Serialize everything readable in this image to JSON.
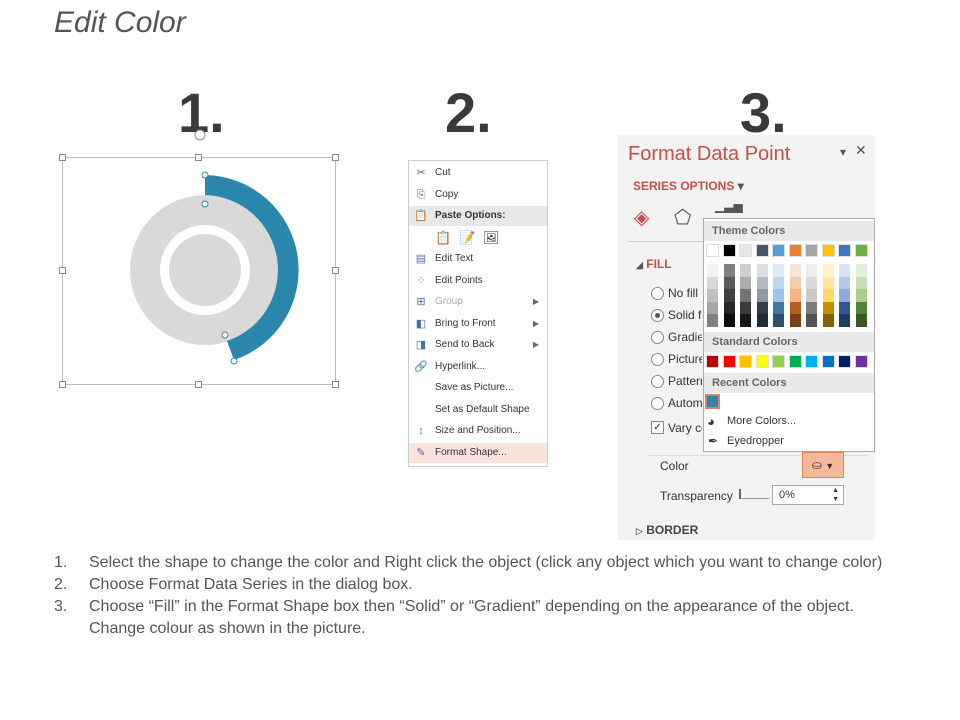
{
  "title": "Edit Color",
  "steps": [
    "1.",
    "2.",
    "3."
  ],
  "context_menu": {
    "items": [
      {
        "label": "Cut",
        "icon": "scissors-icon",
        "glyph": "✂"
      },
      {
        "label": "Copy",
        "icon": "copy-icon",
        "glyph": "⎘"
      },
      {
        "label": "Paste Options:",
        "icon": "paste-icon",
        "glyph": "📋",
        "header": true
      },
      {
        "label": "",
        "icon": "paste-options-icons",
        "glyph": ""
      },
      {
        "label": "Edit Text",
        "icon": "edit-text-icon",
        "glyph": "▤"
      },
      {
        "label": "Edit Points",
        "icon": "edit-points-icon",
        "glyph": "⁘"
      },
      {
        "label": "Group",
        "icon": "group-icon",
        "glyph": "⊞",
        "disabled": true,
        "submenu": true
      },
      {
        "label": "Bring to Front",
        "icon": "bring-to-front-icon",
        "glyph": "◧",
        "submenu": true
      },
      {
        "label": "Send to Back",
        "icon": "send-to-back-icon",
        "glyph": "◨",
        "submenu": true
      },
      {
        "label": "Hyperlink...",
        "icon": "hyperlink-icon",
        "glyph": "🔗"
      },
      {
        "label": "Save as Picture...",
        "icon": "",
        "glyph": ""
      },
      {
        "label": "Set as Default Shape",
        "icon": "",
        "glyph": ""
      },
      {
        "label": "Size and Position...",
        "icon": "size-position-icon",
        "glyph": "↕"
      },
      {
        "label": "Format Shape...",
        "icon": "format-shape-icon",
        "glyph": "✎",
        "highlighted": true
      }
    ]
  },
  "format_panel": {
    "title": "Format Data Point",
    "series_options": "SERIES OPTIONS",
    "fill_section": "FILL",
    "fill_options": [
      "No fill",
      "Solid fill",
      "Gradient fill",
      "Picture or texture fill",
      "Pattern fill",
      "Automatic"
    ],
    "selected_fill": 1,
    "vary_colors": "Vary colors by point",
    "vary_checked": true,
    "color_label": "Color",
    "transparency_label": "Transparency",
    "transparency_value": "0%",
    "border_section": "BORDER",
    "accent": "#c0504d"
  },
  "color_picker": {
    "theme_header": "Theme Colors",
    "theme_colors": [
      "#ffffff",
      "#000000",
      "#e7e6e6",
      "#44546a",
      "#5b9bd5",
      "#ed7d31",
      "#a5a5a5",
      "#ffc000",
      "#4472c4",
      "#70ad47"
    ],
    "standard_header": "Standard Colors",
    "standard_colors": [
      "#c00000",
      "#ff0000",
      "#ffc000",
      "#ffff00",
      "#92d050",
      "#00b050",
      "#00b0f0",
      "#0070c0",
      "#002060",
      "#7030a0"
    ],
    "recent_header": "Recent Colors",
    "recent_colors": [
      "#2a86ad"
    ],
    "more_colors": "More Colors...",
    "eyedropper": "Eyedropper"
  },
  "instructions": [
    {
      "num": "1.",
      "text": "Select the shape to change the color and Right click the object (click any object which you want to change color)"
    },
    {
      "num": "2.",
      "text": "Choose Format Data Series in the dialog box."
    },
    {
      "num": "3.",
      "text": "Choose “Fill” in the Format Shape box then “Solid” or “Gradient” depending on the appearance of the object. Change colour as shown in the picture."
    }
  ],
  "donut": {
    "ring_color": "#d9d9d9",
    "selected_color": "#2a86ad"
  }
}
